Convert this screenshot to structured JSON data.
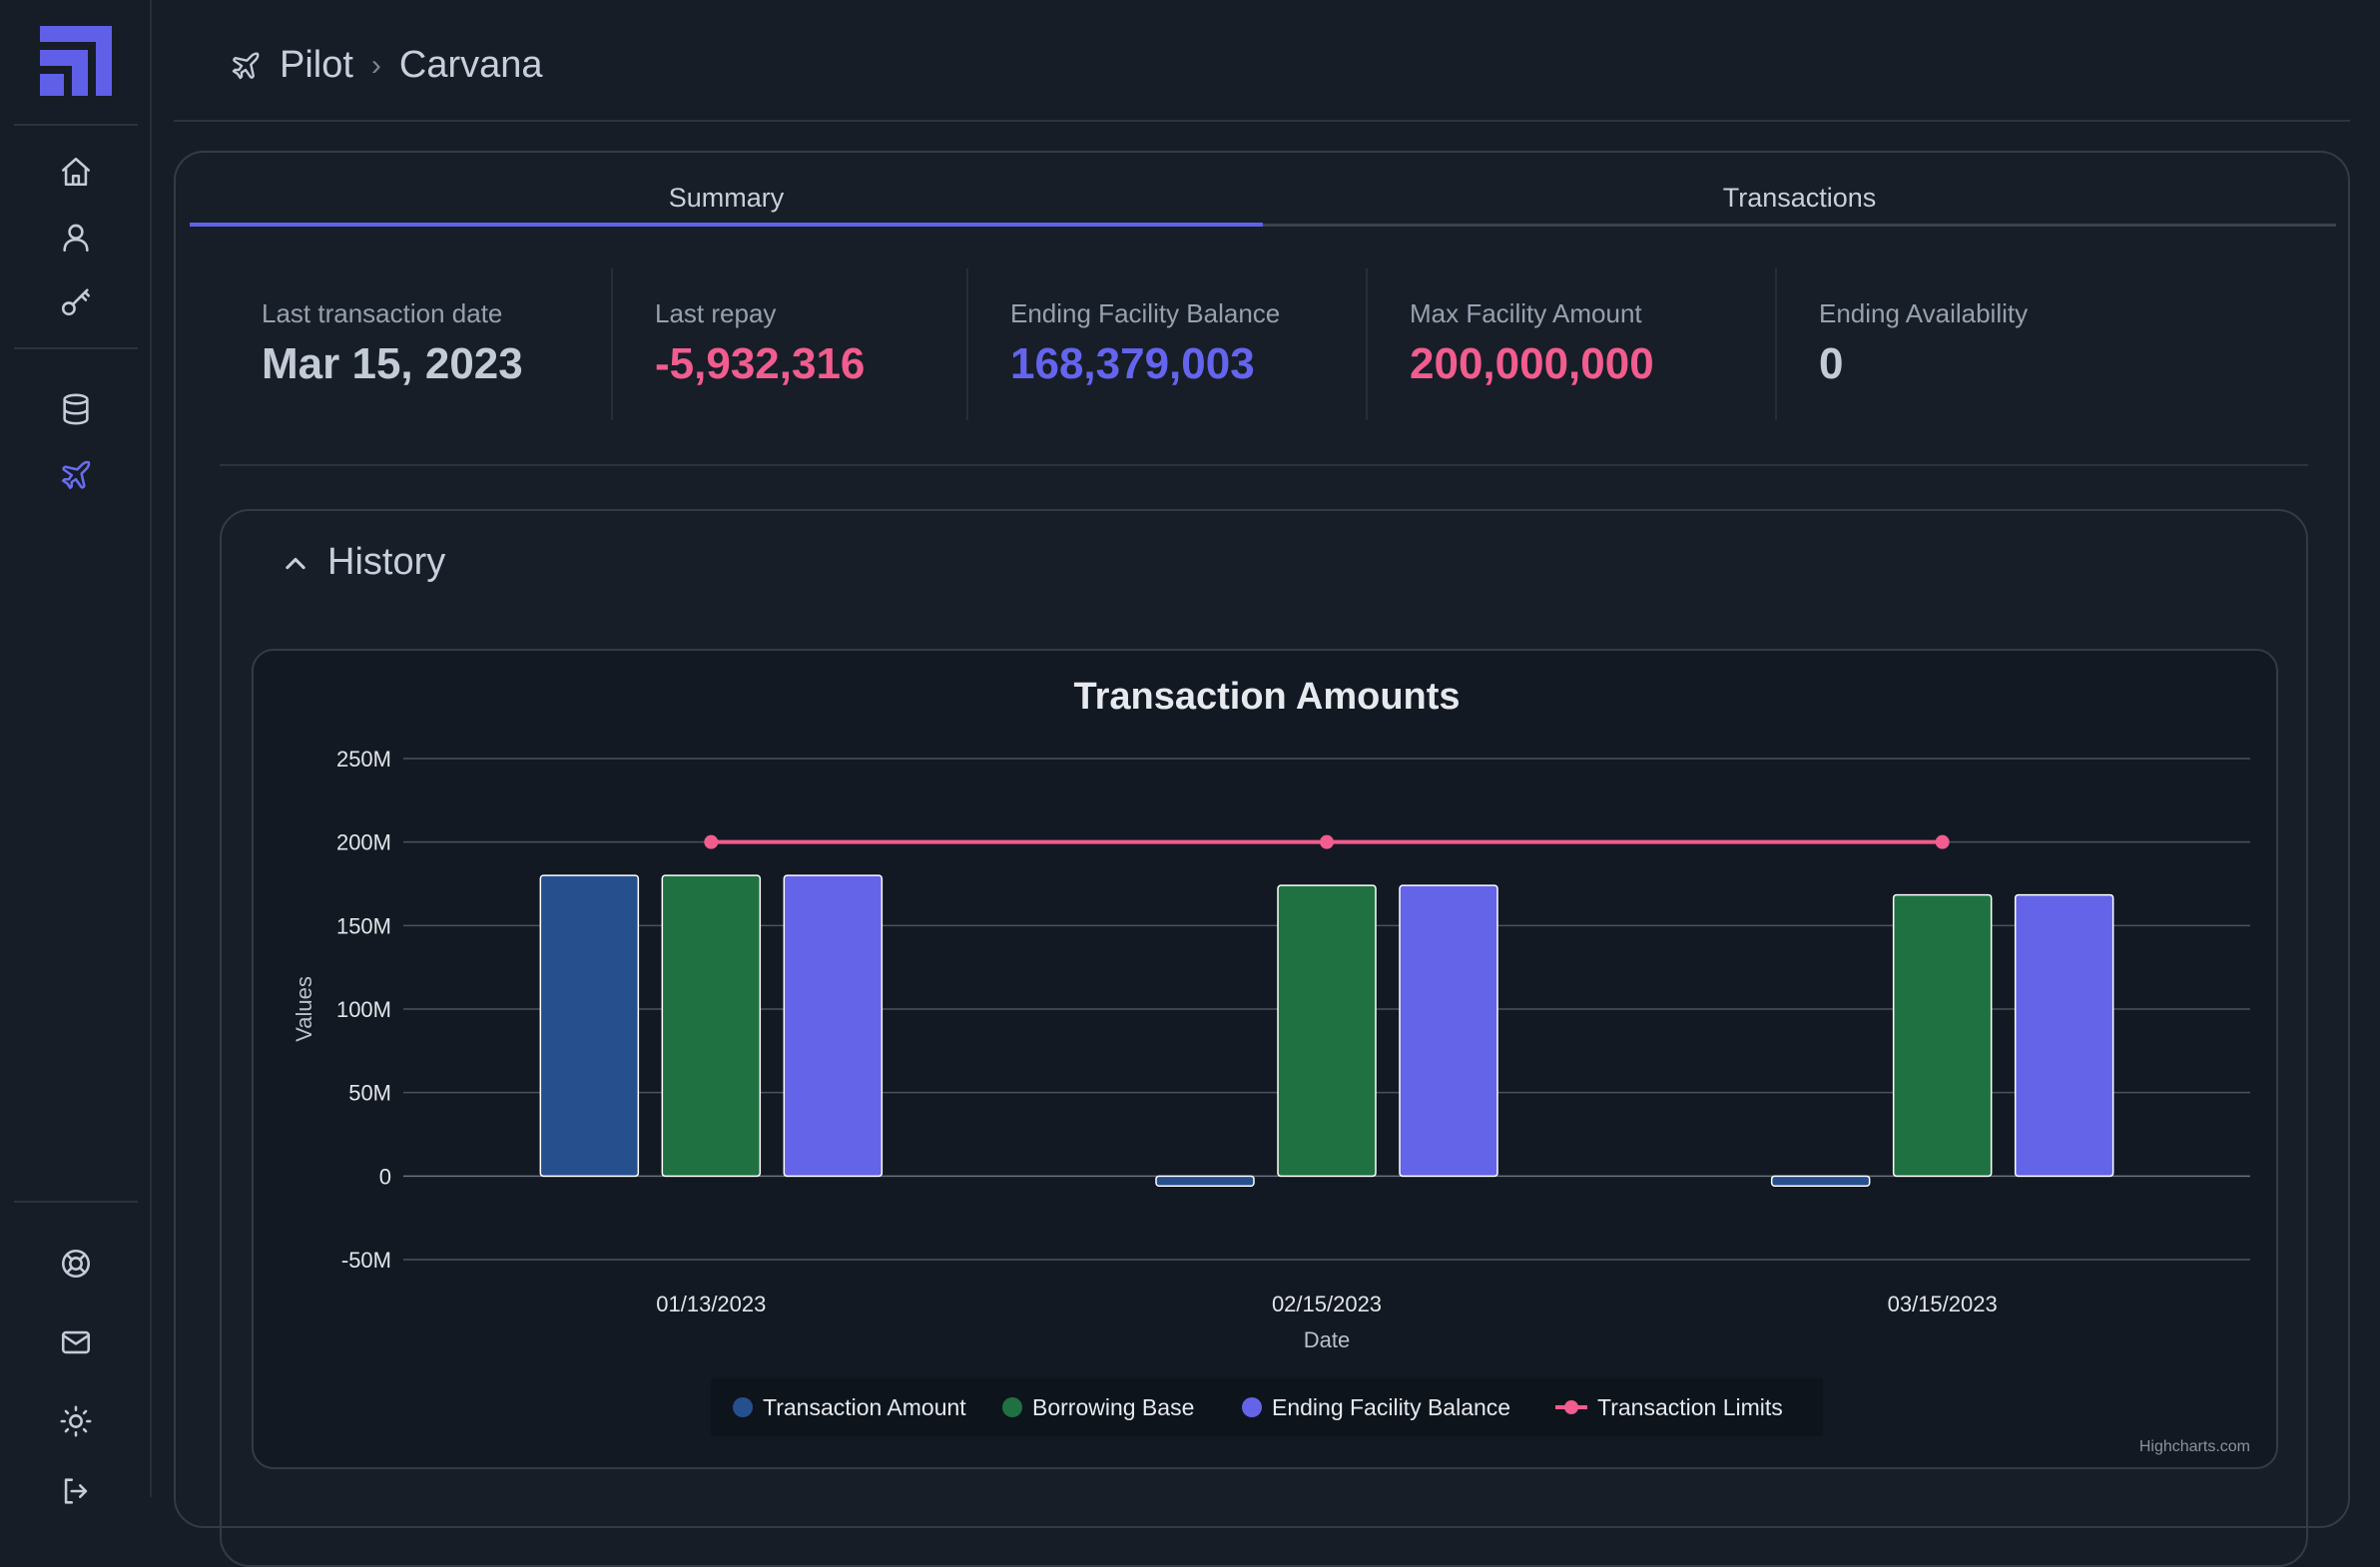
{
  "breadcrumb": {
    "root": "Pilot",
    "current": "Carvana"
  },
  "tabs": [
    {
      "label": "Summary",
      "active": true
    },
    {
      "label": "Transactions",
      "active": false
    }
  ],
  "stats": [
    {
      "label": "Last transaction date",
      "value": "Mar 15, 2023",
      "color": "#c3cbd6"
    },
    {
      "label": "Last repay",
      "value": "-5,932,316",
      "color": "#f25c8e"
    },
    {
      "label": "Ending Facility Balance",
      "value": "168,379,003",
      "color": "#6464ee"
    },
    {
      "label": "Max Facility Amount",
      "value": "200,000,000",
      "color": "#f25c8e"
    },
    {
      "label": "Ending Availability",
      "value": "0",
      "color": "#c3cbd6"
    }
  ],
  "history": {
    "title": "History"
  },
  "chart_data": {
    "type": "bar",
    "title": "Transaction Amounts",
    "xlabel": "Date",
    "ylabel": "Values",
    "categories": [
      "01/13/2023",
      "02/15/2023",
      "03/15/2023"
    ],
    "ylim": [
      -50000000,
      250000000
    ],
    "yticks": [
      {
        "value": 250000000,
        "label": "250M"
      },
      {
        "value": 200000000,
        "label": "200M"
      },
      {
        "value": 150000000,
        "label": "150M"
      },
      {
        "value": 100000000,
        "label": "100M"
      },
      {
        "value": 50000000,
        "label": "50M"
      },
      {
        "value": 0,
        "label": "0"
      },
      {
        "value": -50000000,
        "label": "-50M"
      }
    ],
    "series": [
      {
        "name": "Transaction Amount",
        "type": "bar",
        "color": "#26508d",
        "values": [
          180000000,
          -5932316,
          -5932316
        ]
      },
      {
        "name": "Borrowing Base",
        "type": "bar",
        "color": "#207141",
        "values": [
          180000000,
          174000000,
          168379003
        ]
      },
      {
        "name": "Ending Facility Balance",
        "type": "bar",
        "color": "#6464e9",
        "values": [
          180000000,
          174000000,
          168379003
        ]
      },
      {
        "name": "Transaction Limits",
        "type": "line",
        "color": "#f25c8e",
        "values": [
          200000000,
          200000000,
          200000000
        ]
      }
    ],
    "grid": true,
    "legend": "bottom-center",
    "credits": "Highcharts.com"
  }
}
